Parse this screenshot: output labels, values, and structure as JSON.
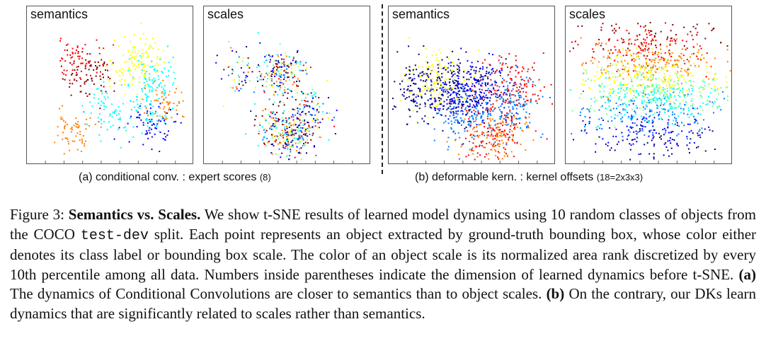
{
  "panels": [
    {
      "label": "semantics",
      "group": "a",
      "pattern": "semantic"
    },
    {
      "label": "scales",
      "group": "a",
      "pattern": "mixed"
    },
    {
      "label": "semantics",
      "group": "b",
      "pattern": "semantic"
    },
    {
      "label": "scales",
      "group": "b",
      "pattern": "gradient"
    }
  ],
  "subcaptions": {
    "a_main": "(a) conditional conv. : expert scores",
    "a_small": "(8)",
    "b_main": "(b) deformable kern. : kernel offsets",
    "b_small": "(18=2x3x3)"
  },
  "caption": {
    "figure_label": "Figure 3:",
    "title": "Semantics vs. Scales.",
    "text1": "We show t-SNE results of learned model dynamics using 10 random classes of objects from the COCO",
    "code": "test-dev",
    "text2": "split. Each point represents an object extracted by ground-truth bounding box, whose color either denotes its class label or bounding box scale. The color of an object scale is its normalized area rank discretized by every 10th percentile among all data. Numbers inside parentheses indicate the dimension of learned dynamics before t-SNE.",
    "a_label": "(a)",
    "a_text": "The dynamics of Conditional Convolutions are closer to semantics than to object scales.",
    "b_label": "(b)",
    "b_text": "On the contrary, our DKs learn dynamics that are significantly related to scales rather than semantics."
  },
  "colormap": [
    "#00007f",
    "#0000ff",
    "#007fff",
    "#00ffff",
    "#7fff7f",
    "#ffff00",
    "#ff7f00",
    "#ff0000",
    "#7f0000"
  ]
}
